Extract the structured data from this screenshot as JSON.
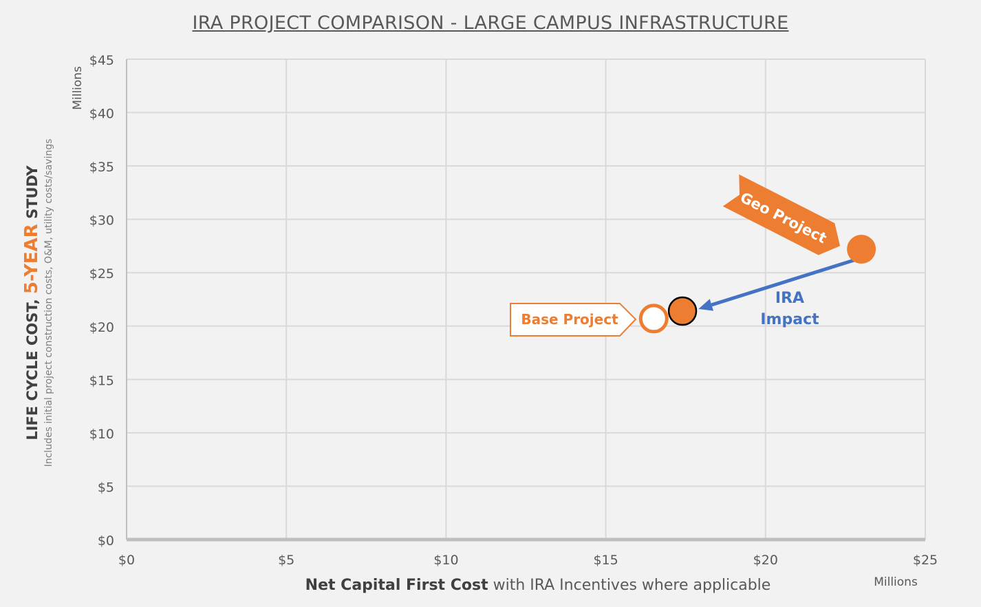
{
  "title": "IRA PROJECT COMPARISON - LARGE CAMPUS INFRASTRUCTURE",
  "y_axis": {
    "label_part1": "LIFE CYCLE COST, ",
    "label_accent": "5-YEAR",
    "label_part2": " STUDY",
    "sublabel": "Includes initial project construction costs, O&M, utility costs/savings",
    "units": "Millions"
  },
  "x_axis": {
    "label_bold": "Net Capital First Cost",
    "label_rest": " with IRA Incentives where applicable",
    "units": "Millions"
  },
  "colors": {
    "orange": "#ed7d31",
    "blue": "#4472c4",
    "grid": "#d9d9d9",
    "axis": "#bfbfbf",
    "text": "#595959"
  },
  "chart_data": {
    "type": "scatter",
    "title": "IRA PROJECT COMPARISON - LARGE CAMPUS INFRASTRUCTURE",
    "xlabel": "Net Capital First Cost with IRA Incentives where applicable",
    "ylabel": "LIFE CYCLE COST, 5-YEAR STUDY",
    "xlim": [
      0,
      25
    ],
    "ylim": [
      0,
      45
    ],
    "x_ticks": [
      0,
      5,
      10,
      15,
      20,
      25
    ],
    "y_ticks": [
      0,
      5,
      10,
      15,
      20,
      25,
      30,
      35,
      40,
      45
    ],
    "x_tick_labels": [
      "$0",
      "$5",
      "$10",
      "$15",
      "$20",
      "$25"
    ],
    "y_tick_labels": [
      "$0",
      "$5",
      "$10",
      "$15",
      "$20",
      "$25",
      "$30",
      "$35",
      "$40",
      "$45"
    ],
    "grid": true,
    "points": [
      {
        "x": 16.5,
        "y": 20.7,
        "style": "hollow-orange"
      },
      {
        "x": 17.4,
        "y": 21.4,
        "style": "filled-orange-dark-outline"
      },
      {
        "x": 23.0,
        "y": 27.2,
        "style": "filled-orange"
      }
    ],
    "arrow": {
      "from": {
        "x": 22.8,
        "y": 26.2
      },
      "to": {
        "x": 17.9,
        "y": 21.6
      }
    },
    "annotations": {
      "geo_project": "Geo Project",
      "base_project": "Base Project",
      "ira_line1": "IRA",
      "ira_line2": "Impact"
    }
  }
}
